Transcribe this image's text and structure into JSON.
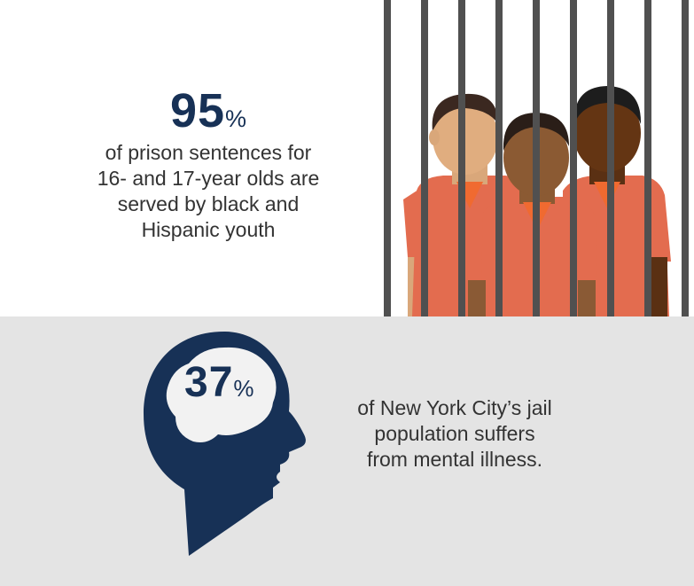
{
  "stat_prison": {
    "number": "95",
    "unit": "%",
    "description_lines": [
      "of prison sentences for",
      "16- and 17-year olds are",
      "served by black and",
      "Hispanic youth"
    ]
  },
  "stat_mental": {
    "number": "37",
    "unit": "%",
    "description_lines": [
      "of New York City’s jail",
      "population suffers",
      "from mental illness."
    ]
  },
  "colors": {
    "navy": "#173156",
    "orange": "#e36c4f",
    "bar_gray": "#505050",
    "light_gray_bg": "#e4e4e4"
  }
}
